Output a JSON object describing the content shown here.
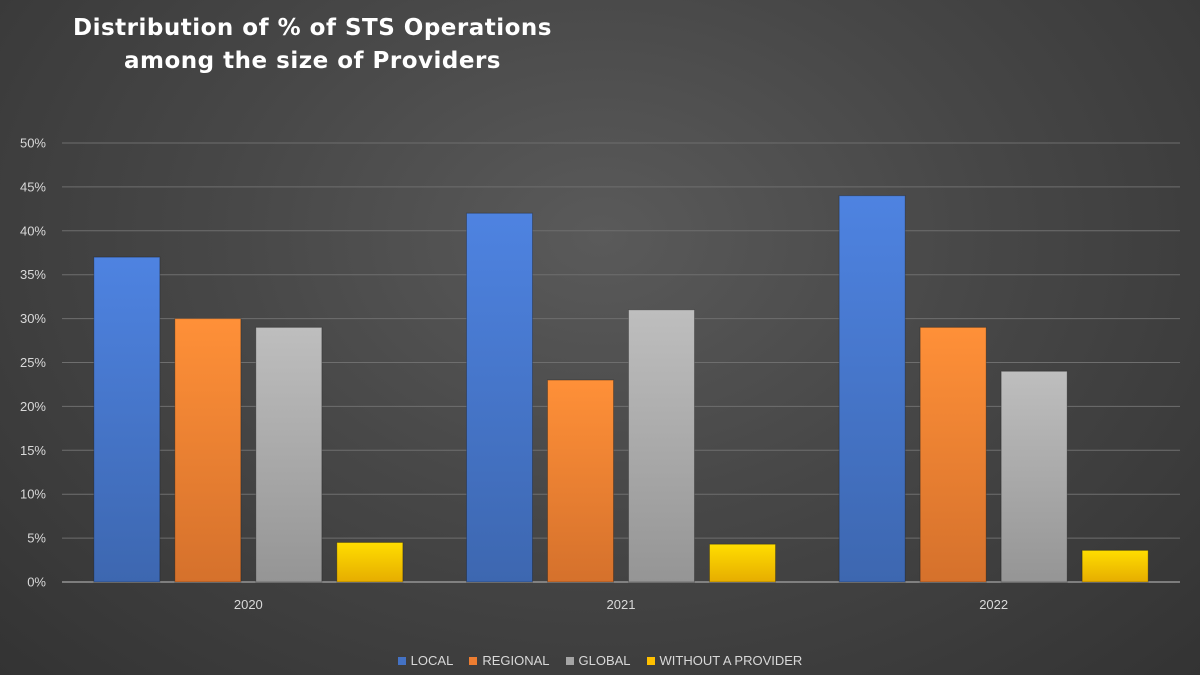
{
  "chart_data": {
    "type": "bar",
    "title": [
      "Distribution of % of STS Operations",
      "among the size of Providers"
    ],
    "categories": [
      "2020",
      "2021",
      "2022"
    ],
    "series": [
      {
        "name": "LOCAL",
        "color": "#4472c4",
        "values": [
          37,
          42,
          44
        ]
      },
      {
        "name": "REGIONAL",
        "color": "#ed7d31",
        "values": [
          30,
          23,
          29
        ]
      },
      {
        "name": "GLOBAL",
        "color": "#a5a5a5",
        "values": [
          29,
          31,
          24
        ]
      },
      {
        "name": "WITHOUT A PROVIDER",
        "color": "#ffc000",
        "values": [
          4.5,
          4.3,
          3.6
        ]
      }
    ],
    "yticks": [
      "0%",
      "5%",
      "10%",
      "15%",
      "20%",
      "25%",
      "30%",
      "35%",
      "40%",
      "45%",
      "50%"
    ],
    "ylim": [
      0,
      50
    ],
    "grid": true,
    "legend": "bottom"
  }
}
